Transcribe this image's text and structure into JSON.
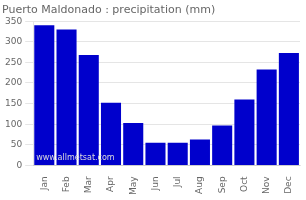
{
  "chart_data": {
    "type": "bar",
    "title": "Puerto Maldonado : precipitation (mm)",
    "categories": [
      "Jan",
      "Feb",
      "Mar",
      "Apr",
      "May",
      "Jun",
      "Jul",
      "Aug",
      "Sep",
      "Oct",
      "Nov",
      "Dec"
    ],
    "values": [
      340,
      330,
      268,
      152,
      103,
      55,
      55,
      63,
      97,
      160,
      233,
      273
    ],
    "color": "#0000cc",
    "ylim": [
      0,
      350
    ],
    "yticks": [
      0,
      50,
      100,
      150,
      200,
      250,
      300,
      350
    ],
    "grid": true,
    "annotations": [
      "www.allmetsat.com"
    ]
  }
}
